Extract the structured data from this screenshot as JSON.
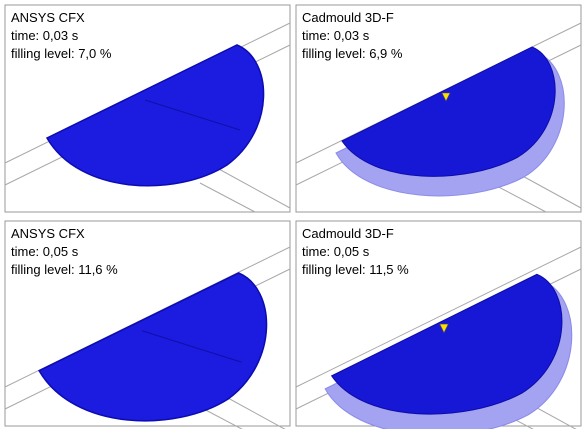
{
  "panels": [
    {
      "software": "ANSYS CFX",
      "time": "time: 0,03 s",
      "filling": "filling level: 7,0 %"
    },
    {
      "software": "Cadmould 3D-F",
      "time": "time: 0,03 s",
      "filling": "filling level: 6,9 %"
    },
    {
      "software": "ANSYS CFX",
      "time": "time: 0,05 s",
      "filling": "filling level: 11,6 %"
    },
    {
      "software": "Cadmould 3D-F",
      "time": "time: 0,05 s",
      "filling": "filling level: 11,5 %"
    }
  ]
}
